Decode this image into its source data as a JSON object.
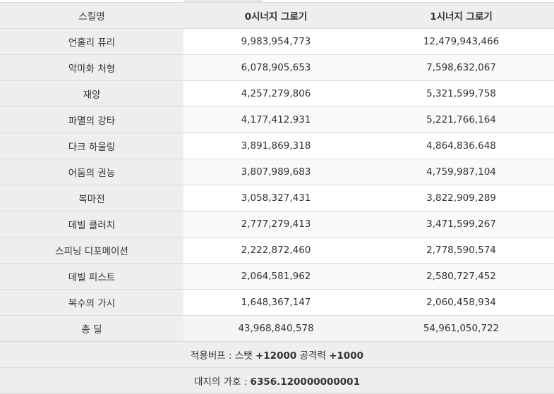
{
  "header": {
    "col_skill": "스킬명",
    "col_syn0": "0시너지 그로기",
    "col_syn1": "1시너지 그로기"
  },
  "rows": [
    {
      "skill": "언홀리 퓨리",
      "syn0": "9,983,954,773",
      "syn1": "12,479,943,466"
    },
    {
      "skill": "악마화 처형",
      "syn0": "6,078,905,653",
      "syn1": "7,598,632,067"
    },
    {
      "skill": "재앙",
      "syn0": "4,257,279,806",
      "syn1": "5,321,599,758"
    },
    {
      "skill": "파멸의 강타",
      "syn0": "4,177,412,931",
      "syn1": "5,221,766,164"
    },
    {
      "skill": "다크 하울링",
      "syn0": "3,891,869,318",
      "syn1": "4,864,836,648"
    },
    {
      "skill": "어둠의 권능",
      "syn0": "3,807,989,683",
      "syn1": "4,759,987,104"
    },
    {
      "skill": "복마전",
      "syn0": "3,058,327,431",
      "syn1": "3,822,909,289"
    },
    {
      "skill": "데빌 클러치",
      "syn0": "2,777,279,413",
      "syn1": "3,471,599,267"
    },
    {
      "skill": "스피닝 디포메이션",
      "syn0": "2,222,872,460",
      "syn1": "2,778,590,574"
    },
    {
      "skill": "데빌 피스트",
      "syn0": "2,064,581,962",
      "syn1": "2,580,727,452"
    },
    {
      "skill": "복수의 가시",
      "syn0": "1,648,367,147",
      "syn1": "2,060,458,934"
    }
  ],
  "total": {
    "label": "총 딜",
    "syn0": "43,968,840,578",
    "syn1": "54,961,050,722"
  },
  "footer": {
    "buff_label": "적용버프 : 스탯 ",
    "buff_stat": "+12000",
    "buff_mid": " 공격력 ",
    "buff_atk": "+1000",
    "blessing_label": "대지의 가호 : ",
    "blessing_value": "6356.120000000001"
  }
}
